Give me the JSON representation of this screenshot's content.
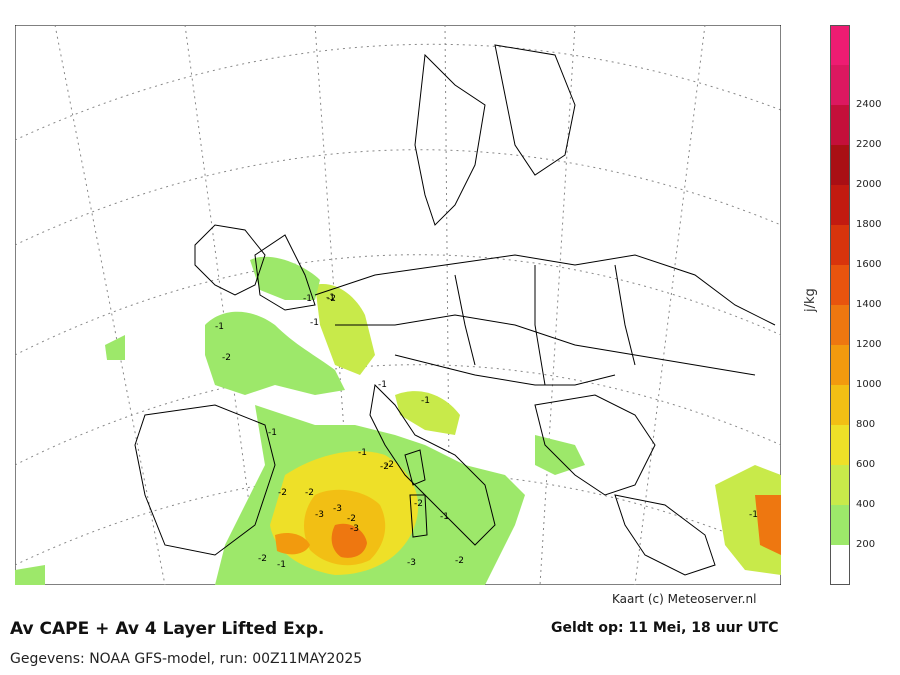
{
  "title": "Av CAPE + Av 4 Layer Lifted Exp.",
  "valid_time": "Geldt op: 11 Mei, 18 uur UTC",
  "source": "Gegevens: NOAA GFS-model, run: 00Z11MAY2025",
  "credit": "Kaart (c) Meteoserver.nl",
  "colorbar": {
    "units": "j/kg",
    "ticks": [
      "200",
      "400",
      "600",
      "800",
      "1000",
      "1200",
      "1400",
      "1600",
      "1800",
      "2000",
      "2200",
      "2400"
    ],
    "colors": [
      "#ffffff",
      "#9de86a",
      "#c8ea4a",
      "#eee028",
      "#f2bf14",
      "#f29a0e",
      "#ee7710",
      "#e8540e",
      "#d8340c",
      "#c21a10",
      "#a90f14",
      "#c40f3a",
      "#dc1860",
      "#ee1c72"
    ]
  },
  "lifted_index_labels": [
    "-1",
    "-1",
    "-2",
    "-1",
    "-1",
    "-2",
    "-2",
    "-1",
    "-1",
    "-1",
    "-1",
    "-2",
    "-3",
    "-2",
    "-3",
    "-2",
    "-1",
    "-2",
    "-2",
    "-1",
    "-3",
    "-2",
    "-1",
    "-2",
    "-3"
  ]
}
